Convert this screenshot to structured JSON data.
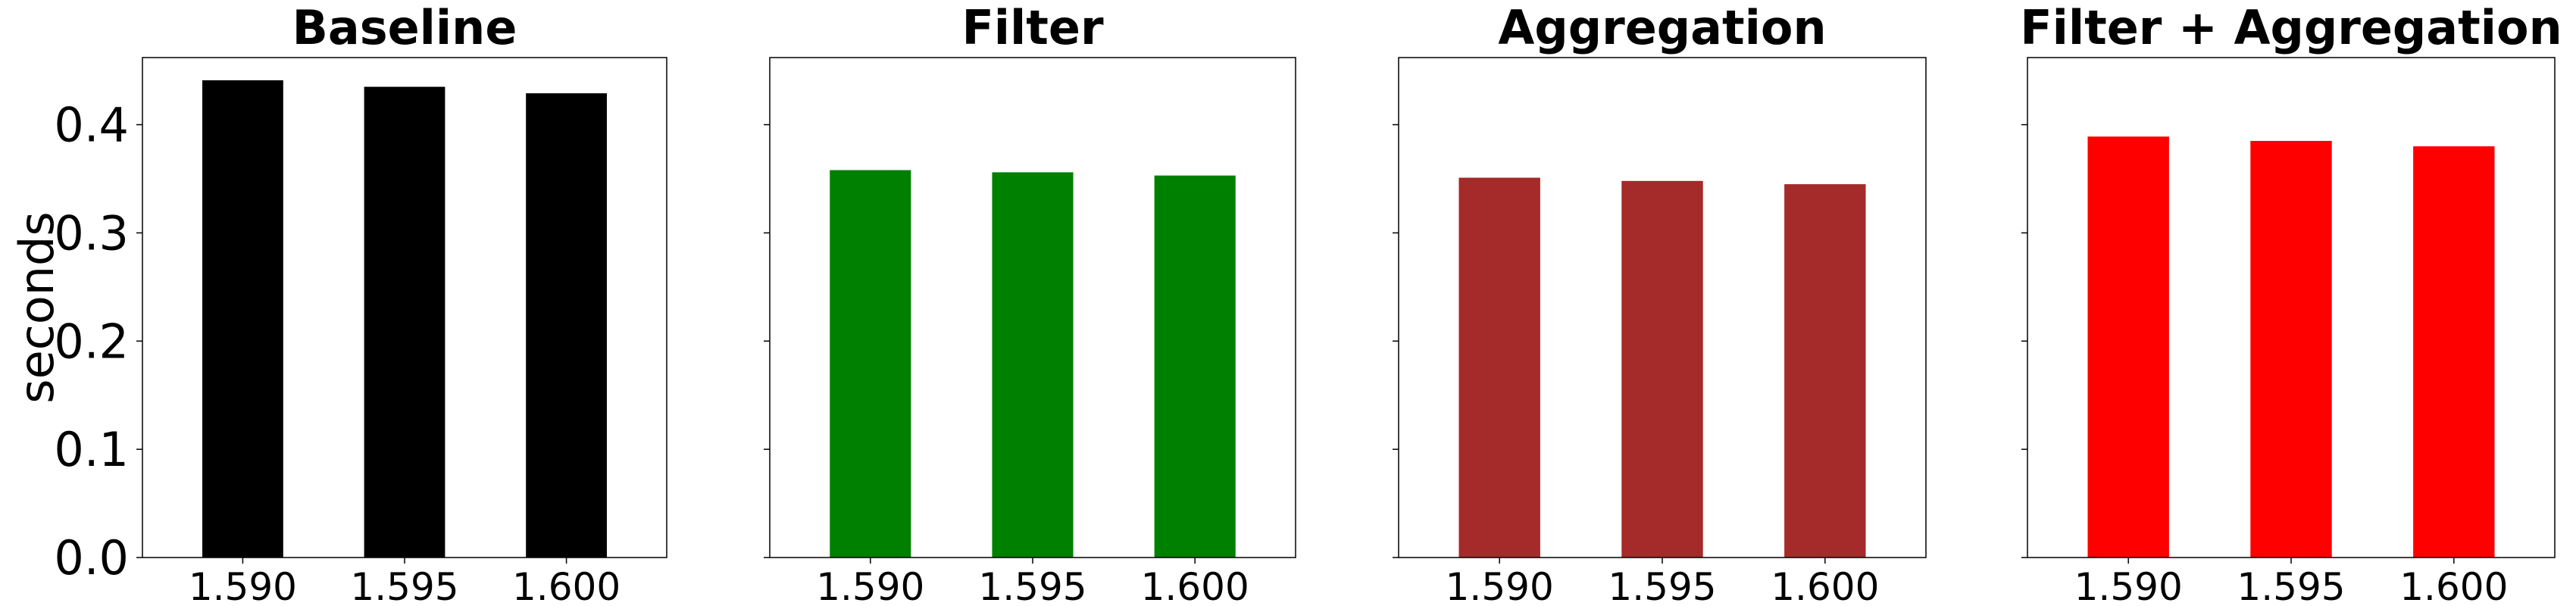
{
  "chart_data": [
    {
      "type": "bar",
      "title": "Baseline",
      "ylabel": "seconds",
      "xlabel": "",
      "categories": [
        "1.590",
        "1.595",
        "1.600"
      ],
      "values": [
        0.441,
        0.435,
        0.429
      ],
      "ylim": [
        0,
        0.462
      ],
      "yticks": [
        "0.0",
        "0.1",
        "0.2",
        "0.3",
        "0.4"
      ],
      "color": "#000000"
    },
    {
      "type": "bar",
      "title": "Filter",
      "xlabel": "",
      "categories": [
        "1.590",
        "1.595",
        "1.600"
      ],
      "values": [
        0.358,
        0.356,
        0.353
      ],
      "ylim": [
        0,
        0.462
      ],
      "color": "#008000"
    },
    {
      "type": "bar",
      "title": "Aggregation",
      "xlabel": "",
      "categories": [
        "1.590",
        "1.595",
        "1.600"
      ],
      "values": [
        0.351,
        0.348,
        0.345
      ],
      "ylim": [
        0,
        0.462
      ],
      "color": "#a52a2a"
    },
    {
      "type": "bar",
      "title": "Filter + Aggregation",
      "xlabel": "",
      "categories": [
        "1.590",
        "1.595",
        "1.600"
      ],
      "values": [
        0.389,
        0.385,
        0.38
      ],
      "ylim": [
        0,
        0.462
      ],
      "color": "#ff0000"
    }
  ]
}
